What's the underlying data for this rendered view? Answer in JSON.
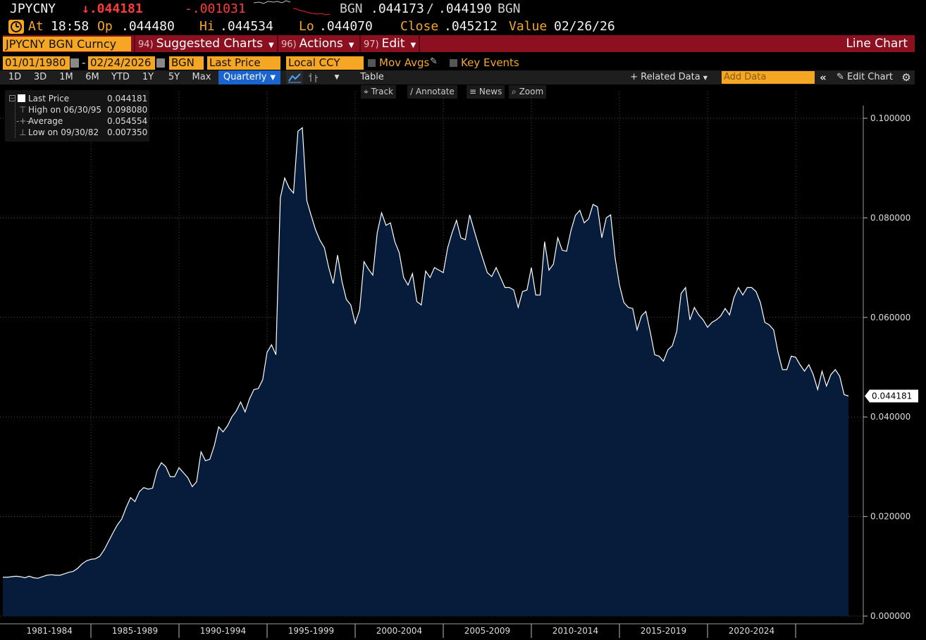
{
  "quote": {
    "ticker": "JPYCNY",
    "last": "↓.044181",
    "change": "-.001031",
    "bid_label": "BGN",
    "bid": ".044173",
    "sep": "/",
    "ask": ".044190",
    "ask_label": "BGN",
    "at_label": "At",
    "time": "18:58",
    "op_label": "Op",
    "open": ".044480",
    "hi_label": "Hi",
    "high": ".044534",
    "lo_label": "Lo",
    "low": ".044070",
    "close_label": "Close",
    "close": ".045212",
    "value_label": "Value",
    "value_date": "02/26/26"
  },
  "menubar": {
    "security": "JPYCNY BGN Curncy",
    "suggested_num": "94)",
    "suggested": "Suggested Charts",
    "actions_num": "96)",
    "actions": "Actions",
    "edit_num": "97)",
    "edit": "Edit",
    "chart_type": "Line Chart"
  },
  "settings": {
    "start_date": "01/01/1980",
    "dash": "-",
    "end_date": "02/24/2026",
    "source": "BGN",
    "field": "Last Price",
    "currency": "Local CCY",
    "mov_avgs": "Mov Avgs",
    "key_events": "Key Events"
  },
  "rangebar": {
    "ranges": [
      "1D",
      "3D",
      "1M",
      "6M",
      "YTD",
      "1Y",
      "5Y",
      "Max"
    ],
    "frequency": "Quarterly",
    "table": "Table",
    "related": "+ Related Data",
    "add_data_placeholder": "Add Data",
    "edit_chart": "Edit Chart"
  },
  "tools": [
    "Track",
    "Annotate",
    "News",
    "Zoom"
  ],
  "legend": {
    "last_label": "Last Price",
    "last_value": "0.044181",
    "high_label": "High on 06/30/95",
    "high_value": "0.098080",
    "avg_label": "Average",
    "avg_value": "0.054554",
    "low_label": "Low on 09/30/82",
    "low_value": "0.007350"
  },
  "colors": {
    "area_fill": "#061c3a",
    "line": "#ffffff",
    "accent_orange": "#f5a623",
    "menu_red": "#8c1020",
    "down_red": "#ff3b3b"
  },
  "chart_data": {
    "type": "area",
    "series": [
      {
        "name": "Last Price",
        "x_start": "1980 Q1",
        "x_end": "2026 Q1",
        "frequency": "quarterly",
        "values": [
          0.0078,
          0.0078,
          0.0079,
          0.008,
          0.0079,
          0.0077,
          0.008,
          0.0077,
          0.0076,
          0.0079,
          0.0082,
          0.0083,
          0.0082,
          0.0082,
          0.0085,
          0.0088,
          0.009,
          0.0096,
          0.0105,
          0.0111,
          0.0114,
          0.0115,
          0.012,
          0.0133,
          0.015,
          0.0167,
          0.0183,
          0.0195,
          0.0218,
          0.0238,
          0.023,
          0.025,
          0.0258,
          0.0255,
          0.0257,
          0.0292,
          0.0308,
          0.03,
          0.028,
          0.028,
          0.0298,
          0.0288,
          0.0278,
          0.026,
          0.027,
          0.033,
          0.0312,
          0.0315,
          0.0342,
          0.038,
          0.037,
          0.0382,
          0.04,
          0.0412,
          0.043,
          0.041,
          0.0436,
          0.0455,
          0.0457,
          0.0475,
          0.053,
          0.0545,
          0.0525,
          0.084,
          0.088,
          0.086,
          0.085,
          0.0974,
          0.0981,
          0.0835,
          0.0805,
          0.0776,
          0.0755,
          0.074,
          0.07,
          0.0668,
          0.0725,
          0.0672,
          0.0636,
          0.0625,
          0.0588,
          0.0615,
          0.0712,
          0.0697,
          0.0685,
          0.077,
          0.081,
          0.0785,
          0.079,
          0.0752,
          0.073,
          0.068,
          0.0665,
          0.0688,
          0.0632,
          0.0625,
          0.0693,
          0.068,
          0.07,
          0.0695,
          0.069,
          0.074,
          0.077,
          0.0795,
          0.076,
          0.0756,
          0.0806,
          0.0775,
          0.0745,
          0.0717,
          0.069,
          0.0682,
          0.07,
          0.068,
          0.066,
          0.066,
          0.0655,
          0.062,
          0.0652,
          0.0655,
          0.07,
          0.0645,
          0.0645,
          0.0752,
          0.0695,
          0.0707,
          0.076,
          0.0735,
          0.0733,
          0.0775,
          0.0805,
          0.0815,
          0.079,
          0.0798,
          0.0827,
          0.0822,
          0.076,
          0.08,
          0.0806,
          0.072,
          0.0665,
          0.063,
          0.062,
          0.0618,
          0.0575,
          0.0603,
          0.0612,
          0.057,
          0.0525,
          0.0522,
          0.0512,
          0.0535,
          0.0543,
          0.0572,
          0.0648,
          0.066,
          0.0595,
          0.062,
          0.0605,
          0.0595,
          0.058,
          0.059,
          0.0595,
          0.0603,
          0.0618,
          0.0605,
          0.064,
          0.066,
          0.0645,
          0.066,
          0.066,
          0.0652,
          0.063,
          0.059,
          0.0585,
          0.0575,
          0.053,
          0.0495,
          0.0495,
          0.0522,
          0.052,
          0.0505,
          0.0492,
          0.0505,
          0.0485,
          0.0455,
          0.0492,
          0.0462,
          0.0485,
          0.0495,
          0.0482,
          0.0445,
          0.0442
        ]
      }
    ],
    "x_labels": [
      "1981-1984",
      "1985-1989",
      "1990-1994",
      "1995-1999",
      "2000-2004",
      "2005-2009",
      "2010-2014",
      "2015-2019",
      "2020-2024"
    ],
    "y_ticks": [
      "0.000000",
      "0.020000",
      "0.040000",
      "0.060000",
      "0.080000",
      "0.100000"
    ],
    "ylim": [
      0,
      0.1
    ],
    "last_value_label": "0.044181",
    "grid": true,
    "legend_position": "top-left"
  }
}
